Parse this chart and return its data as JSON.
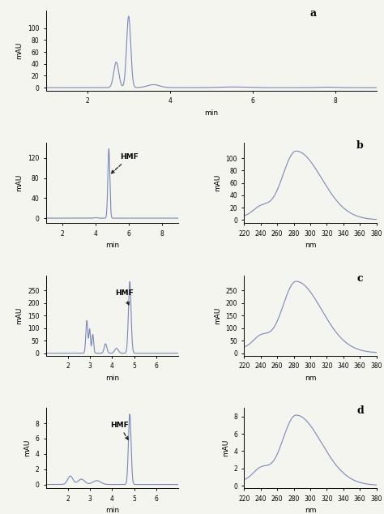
{
  "line_color": "#7788bb",
  "background": "#f5f5f0",
  "panel_a": {
    "label": "a",
    "xlim": [
      1,
      9
    ],
    "ylim": [
      -5,
      130
    ],
    "yticks": [
      0,
      20,
      40,
      60,
      80,
      100
    ],
    "xticks": [
      2,
      4,
      6,
      8
    ],
    "xlabel": "min",
    "ylabel": "mAU"
  },
  "panel_b_chrom": {
    "xlim": [
      1,
      9
    ],
    "ylim": [
      -10,
      150
    ],
    "yticks": [
      0,
      40,
      80,
      120
    ],
    "xticks": [
      2,
      4,
      6,
      8
    ],
    "xlabel": "min",
    "ylabel": "mAU"
  },
  "panel_b_spec": {
    "label": "b",
    "xlim": [
      220,
      380
    ],
    "ylim": [
      -5,
      125
    ],
    "yticks": [
      0,
      20,
      40,
      60,
      80,
      100
    ],
    "xticks": [
      220,
      240,
      260,
      280,
      300,
      320,
      340,
      360,
      380
    ],
    "xlabel": "nm",
    "ylabel": "mAU"
  },
  "panel_c_chrom": {
    "xlim": [
      1,
      7
    ],
    "ylim": [
      -10,
      310
    ],
    "yticks": [
      0,
      50,
      100,
      150,
      200,
      250
    ],
    "xticks": [
      2,
      3,
      4,
      5,
      6
    ],
    "xlabel": "min",
    "ylabel": "mAU"
  },
  "panel_c_spec": {
    "label": "c",
    "xlim": [
      220,
      380
    ],
    "ylim": [
      -10,
      310
    ],
    "yticks": [
      0,
      50,
      100,
      150,
      200,
      250
    ],
    "xticks": [
      220,
      240,
      260,
      280,
      300,
      320,
      340,
      360,
      380
    ],
    "xlabel": "nm",
    "ylabel": "mAU"
  },
  "panel_d_chrom": {
    "xlim": [
      1,
      7
    ],
    "ylim": [
      -0.5,
      10
    ],
    "yticks": [
      0,
      2,
      4,
      6,
      8
    ],
    "xticks": [
      2,
      3,
      4,
      5,
      6
    ],
    "xlabel": "min",
    "ylabel": "mAU"
  },
  "panel_d_spec": {
    "label": "d",
    "xlim": [
      220,
      380
    ],
    "ylim": [
      -0.3,
      9
    ],
    "yticks": [
      0,
      2,
      4,
      6,
      8
    ],
    "xticks": [
      220,
      240,
      260,
      280,
      300,
      320,
      340,
      360,
      380
    ],
    "xlabel": "nm",
    "ylabel": "mAU"
  }
}
